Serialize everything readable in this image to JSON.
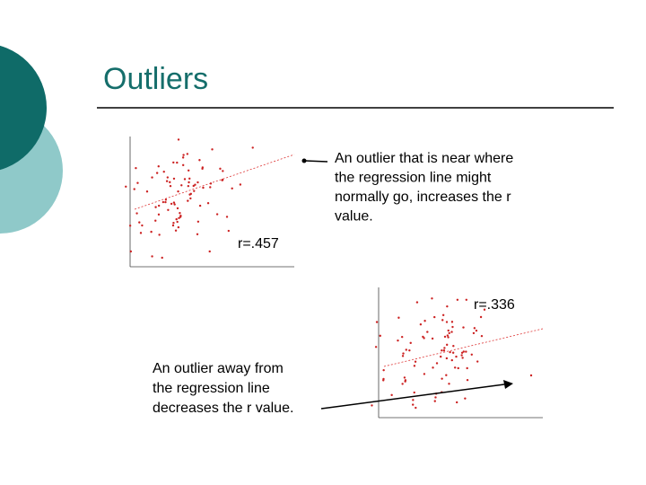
{
  "slide": {
    "title": "Outliers",
    "top_chart": {
      "r_label": "r=.457",
      "note": [
        "An outlier that is near where",
        "the regression line might",
        "normally go, increases the r",
        "value."
      ]
    },
    "bottom_chart": {
      "r_label": "r=.336",
      "note": [
        "An outlier away from",
        "the regression line",
        "decreases the r value."
      ]
    }
  }
}
